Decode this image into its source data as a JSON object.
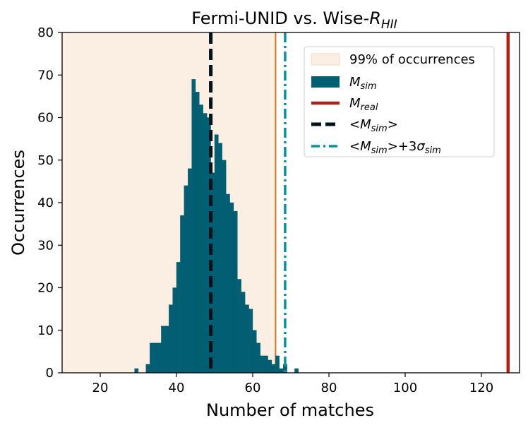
{
  "chart_data": {
    "type": "bar",
    "title": {
      "main": "Fermi-UNID vs. Wise-",
      "italic": "R",
      "sub": "HII"
    },
    "xlabel": "Number of matches",
    "ylabel": "Occurrences",
    "xlim": [
      10,
      130
    ],
    "ylim": [
      0,
      80
    ],
    "xticks": [
      20,
      40,
      60,
      80,
      100,
      120
    ],
    "yticks": [
      0,
      10,
      20,
      30,
      40,
      50,
      60,
      70,
      80
    ],
    "grid": false,
    "legend_position": "top-right",
    "colors": {
      "histogram": "#005f73",
      "shade": "#fbeee3",
      "shade_edge": "#c8782a",
      "real": "#ae2012",
      "mean": "#001219",
      "sigma": "#0a9396"
    },
    "shaded_region": {
      "x0": 10,
      "x1": 66
    },
    "histogram": {
      "bin_width": 1,
      "bins": [
        {
          "x": 29,
          "y": 1
        },
        {
          "x": 32,
          "y": 2
        },
        {
          "x": 33,
          "y": 7
        },
        {
          "x": 34,
          "y": 7
        },
        {
          "x": 35,
          "y": 7
        },
        {
          "x": 36,
          "y": 11
        },
        {
          "x": 37,
          "y": 11
        },
        {
          "x": 38,
          "y": 16
        },
        {
          "x": 39,
          "y": 20
        },
        {
          "x": 40,
          "y": 26
        },
        {
          "x": 41,
          "y": 37
        },
        {
          "x": 42,
          "y": 44
        },
        {
          "x": 43,
          "y": 48
        },
        {
          "x": 44,
          "y": 69
        },
        {
          "x": 45,
          "y": 66
        },
        {
          "x": 46,
          "y": 63
        },
        {
          "x": 47,
          "y": 61
        },
        {
          "x": 48,
          "y": 60
        },
        {
          "x": 49,
          "y": 47
        },
        {
          "x": 50,
          "y": 56
        },
        {
          "x": 51,
          "y": 54
        },
        {
          "x": 52,
          "y": 50
        },
        {
          "x": 53,
          "y": 42
        },
        {
          "x": 54,
          "y": 40
        },
        {
          "x": 55,
          "y": 38
        },
        {
          "x": 56,
          "y": 22
        },
        {
          "x": 57,
          "y": 19
        },
        {
          "x": 58,
          "y": 16
        },
        {
          "x": 59,
          "y": 15
        },
        {
          "x": 60,
          "y": 10
        },
        {
          "x": 61,
          "y": 7
        },
        {
          "x": 62,
          "y": 4
        },
        {
          "x": 63,
          "y": 4
        },
        {
          "x": 64,
          "y": 3
        },
        {
          "x": 65,
          "y": 2
        },
        {
          "x": 66,
          "y": 4
        },
        {
          "x": 67,
          "y": 1
        },
        {
          "x": 68,
          "y": 2
        },
        {
          "x": 71,
          "y": 1
        }
      ]
    },
    "vlines": [
      {
        "id": "mean",
        "x": 49,
        "style": "dashed"
      },
      {
        "id": "sigma",
        "x": 68.5,
        "style": "dashdot"
      },
      {
        "id": "real",
        "x": 127,
        "style": "solid"
      }
    ],
    "legend": [
      {
        "id": "shade",
        "plain": "99% of occurrences"
      },
      {
        "id": "hist",
        "pre": "",
        "italic": "M",
        "sub": "sim",
        "post": ""
      },
      {
        "id": "real",
        "pre": "",
        "italic": "M",
        "sub": "real",
        "post": ""
      },
      {
        "id": "mean",
        "pre": "<",
        "italic": "M",
        "sub": "sim",
        "post": ">"
      },
      {
        "id": "sigma",
        "pre": "<",
        "italic": "M",
        "sub": "sim",
        "post": ">+3",
        "italic2": "σ",
        "sub2": "sim"
      }
    ]
  }
}
